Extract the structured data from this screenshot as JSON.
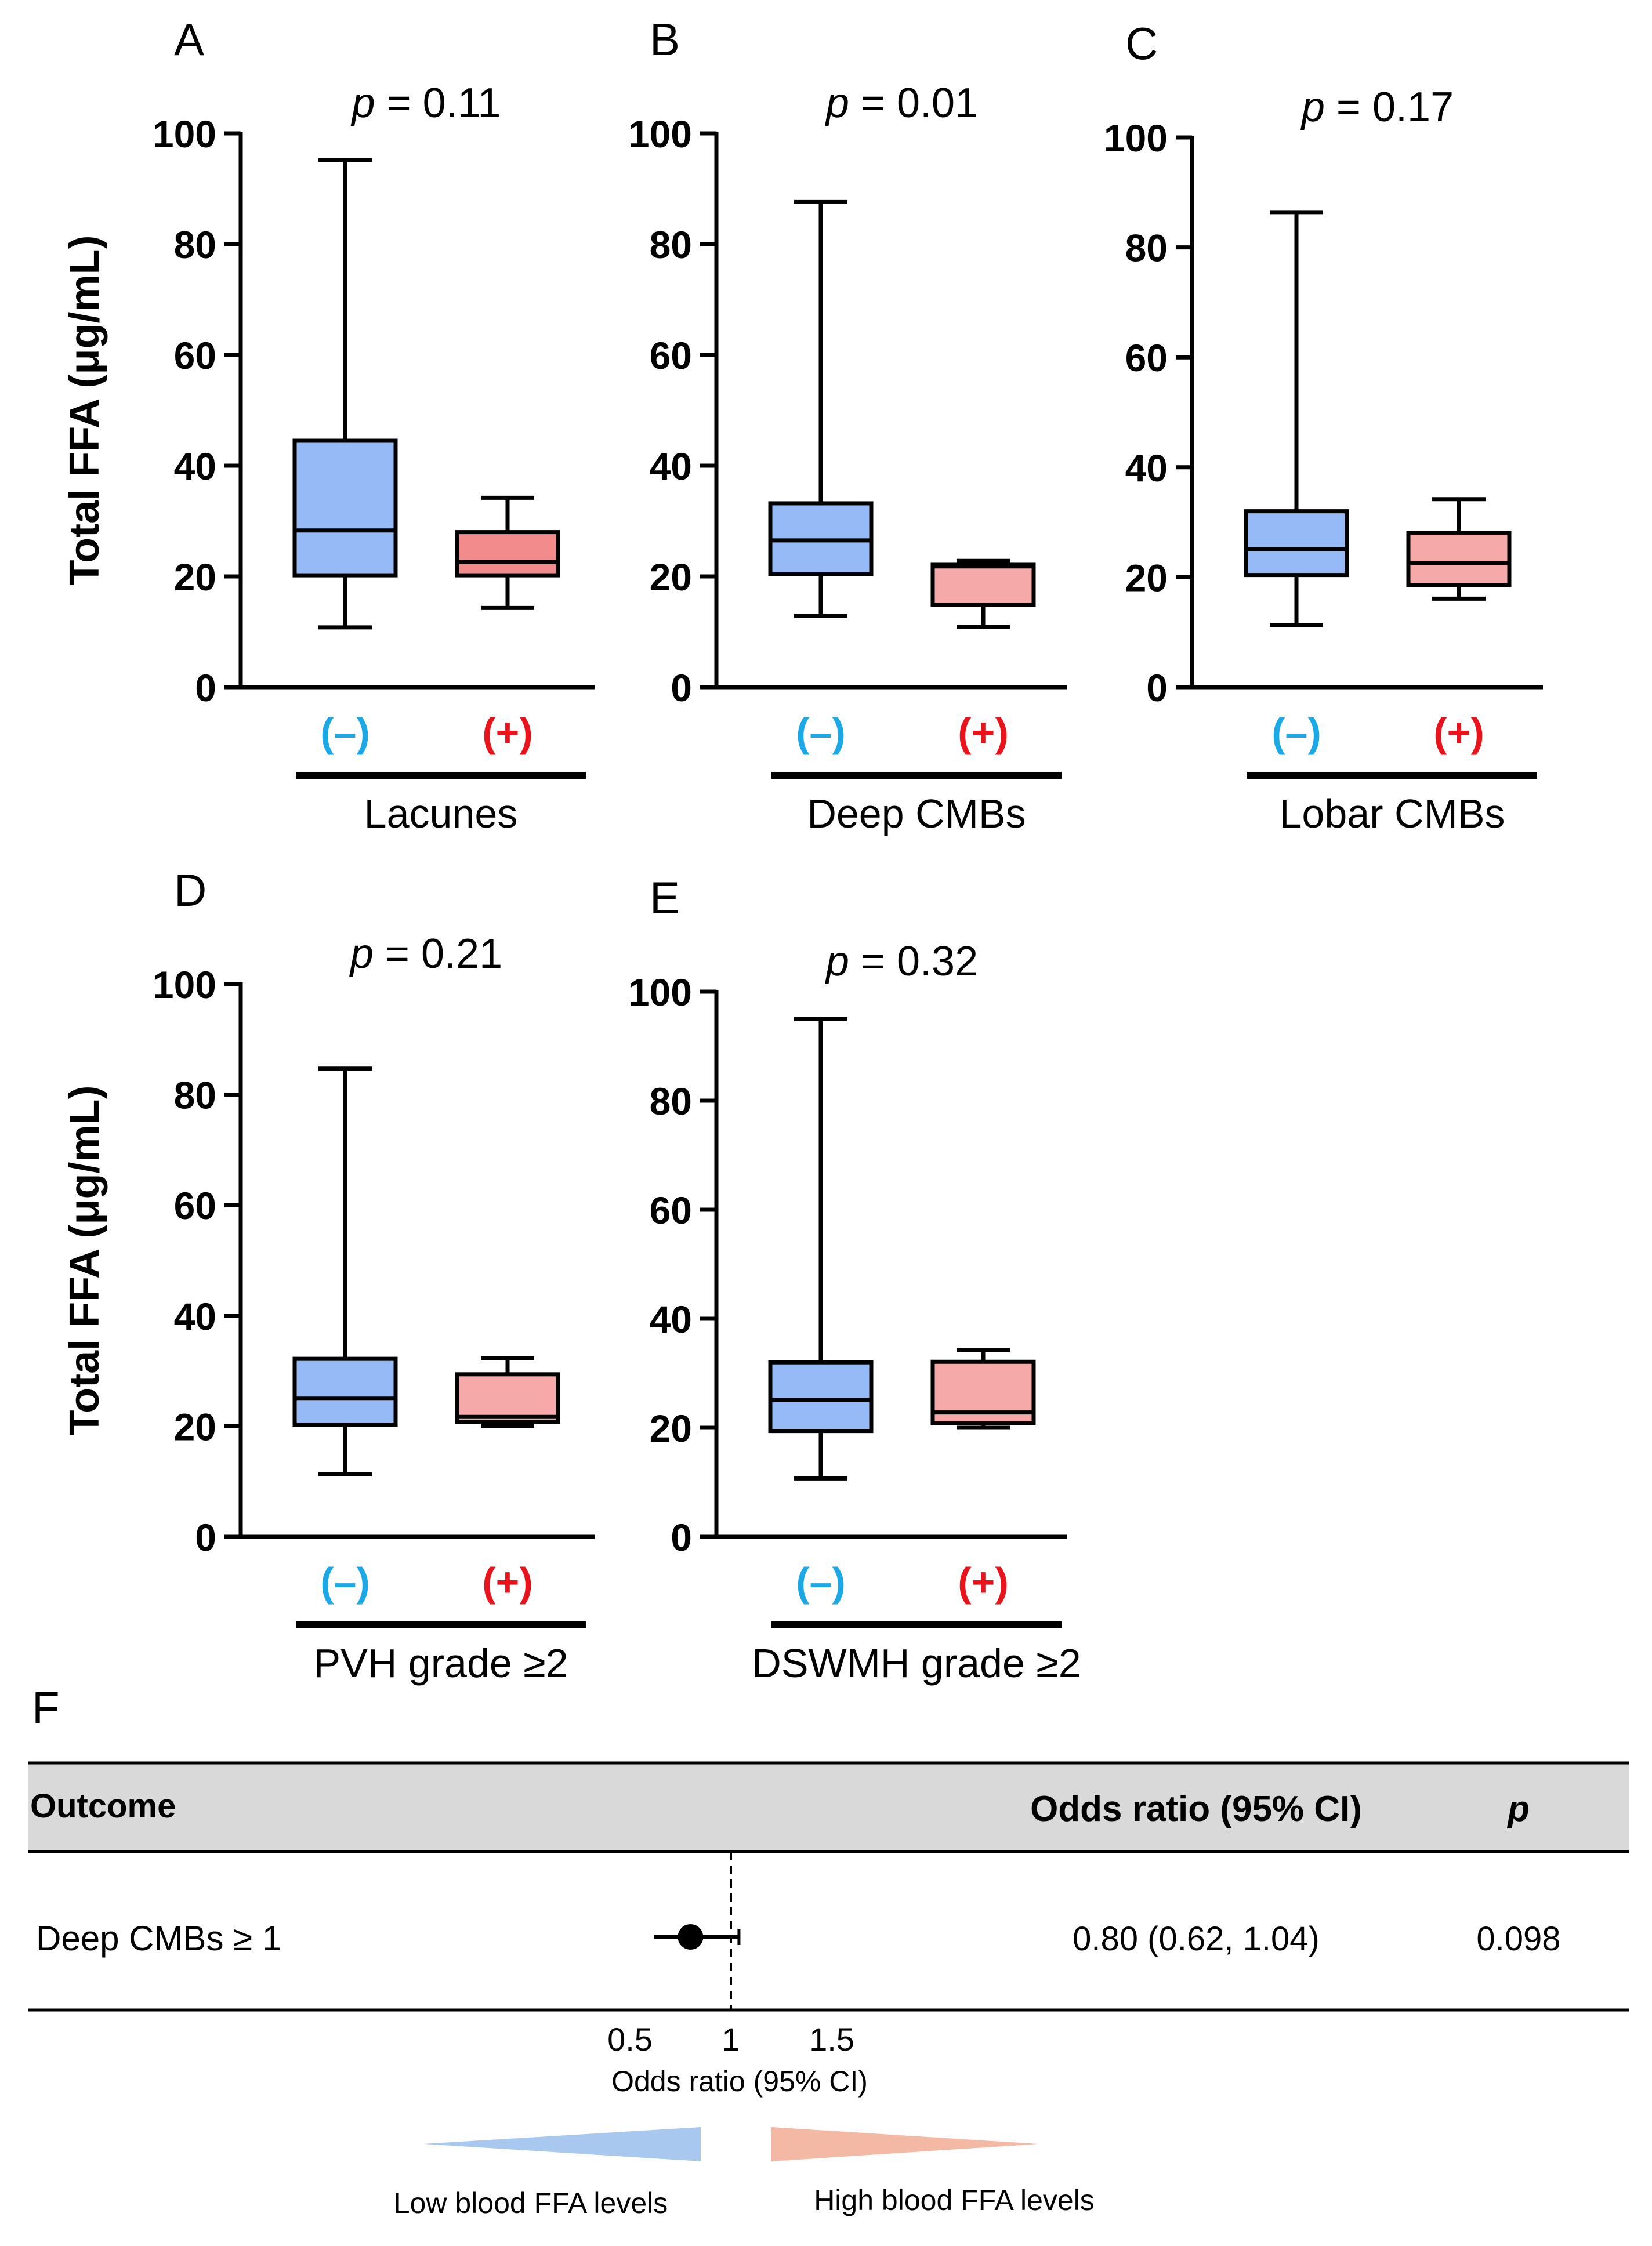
{
  "colors": {
    "neg": "#95BAF5",
    "pos_a": "#F28C8C",
    "pos": "#F6A9A9",
    "neg_label": "#1AA8E6",
    "pos_label": "#E8131B",
    "forest_low": "#A8C8F0",
    "forest_high": "#F4B9A4",
    "header_bg": "#D9D9D9"
  },
  "y_axis_label": "Total FFA (μg/mL)",
  "neg_label": "(–)",
  "pos_label": "(+)",
  "p_prefix": "p",
  "chart_data": [
    {
      "type": "box",
      "panel": "A",
      "xlabel": "Lacunes",
      "p_value": "= 0.11",
      "ylim": [
        0,
        100
      ],
      "yticks": [
        "0",
        "20",
        "40",
        "60",
        "80",
        "100"
      ],
      "boxes": [
        {
          "group": "(–)",
          "min": 10.8,
          "q1": 20.2,
          "median": 28.3,
          "q3": 44.5,
          "max": 95.2,
          "color_key": "neg"
        },
        {
          "group": "(+)",
          "min": 14.3,
          "q1": 20.2,
          "median": 22.6,
          "q3": 28.0,
          "max": 34.2,
          "color_key": "pos_a"
        }
      ]
    },
    {
      "type": "box",
      "panel": "B",
      "xlabel": "Deep CMBs",
      "p_value": "= 0.01",
      "ylim": [
        0,
        100
      ],
      "yticks": [
        "0",
        "20",
        "40",
        "60",
        "80",
        "100"
      ],
      "boxes": [
        {
          "group": "(–)",
          "min": 12.9,
          "q1": 20.4,
          "median": 26.5,
          "q3": 33.2,
          "max": 87.6,
          "color_key": "neg"
        },
        {
          "group": "(+)",
          "min": 10.9,
          "q1": 14.9,
          "median": 21.8,
          "q3": 22.2,
          "max": 22.8,
          "color_key": "pos"
        }
      ]
    },
    {
      "type": "box",
      "panel": "C",
      "xlabel": "Lobar CMBs",
      "p_value": "= 0.17",
      "ylim": [
        0,
        100
      ],
      "yticks": [
        "0",
        "20",
        "40",
        "60",
        "80",
        "100"
      ],
      "boxes": [
        {
          "group": "(–)",
          "min": 11.3,
          "q1": 20.4,
          "median": 25.1,
          "q3": 32.0,
          "max": 86.4,
          "color_key": "neg"
        },
        {
          "group": "(+)",
          "min": 16.1,
          "q1": 18.6,
          "median": 22.6,
          "q3": 28.1,
          "max": 34.2,
          "color_key": "pos"
        }
      ]
    },
    {
      "type": "box",
      "panel": "D",
      "xlabel": "PVH grade ≥2",
      "p_value": "= 0.21",
      "ylim": [
        0,
        100
      ],
      "yticks": [
        "0",
        "20",
        "40",
        "60",
        "80",
        "100"
      ],
      "boxes": [
        {
          "group": "(–)",
          "min": 11.3,
          "q1": 20.3,
          "median": 25.0,
          "q3": 32.2,
          "max": 84.7,
          "color_key": "neg"
        },
        {
          "group": "(+)",
          "min": 20.1,
          "q1": 20.8,
          "median": 21.7,
          "q3": 29.4,
          "max": 32.3,
          "color_key": "pos"
        }
      ]
    },
    {
      "type": "box",
      "panel": "E",
      "xlabel": "DSWMH grade ≥2",
      "p_value": "= 0.32",
      "ylim": [
        0,
        100
      ],
      "yticks": [
        "0",
        "20",
        "40",
        "60",
        "80",
        "100"
      ],
      "boxes": [
        {
          "group": "(–)",
          "min": 10.7,
          "q1": 19.4,
          "median": 25.1,
          "q3": 32.0,
          "max": 95.0,
          "color_key": "neg"
        },
        {
          "group": "(+)",
          "min": 20.0,
          "q1": 20.8,
          "median": 22.8,
          "q3": 32.1,
          "max": 34.2,
          "color_key": "pos"
        }
      ]
    }
  ],
  "forest": {
    "panel": "F",
    "header": {
      "outcome": "Outcome",
      "or": "Odds ratio (95%  CI)",
      "p": "p"
    },
    "row": {
      "outcome": "Deep CMBs ≥ 1",
      "or_text": "0.80 (0.62, 1.04)",
      "p_text": "0.098",
      "estimate": 0.8,
      "ci_low": 0.62,
      "ci_high": 1.04
    },
    "reference": 1,
    "xticks": [
      "0.5",
      "1",
      "1.5"
    ],
    "xlabel": "Odds ratio (95% CI)",
    "low_label": "Low blood FFA levels",
    "high_label": "High blood FFA levels"
  }
}
